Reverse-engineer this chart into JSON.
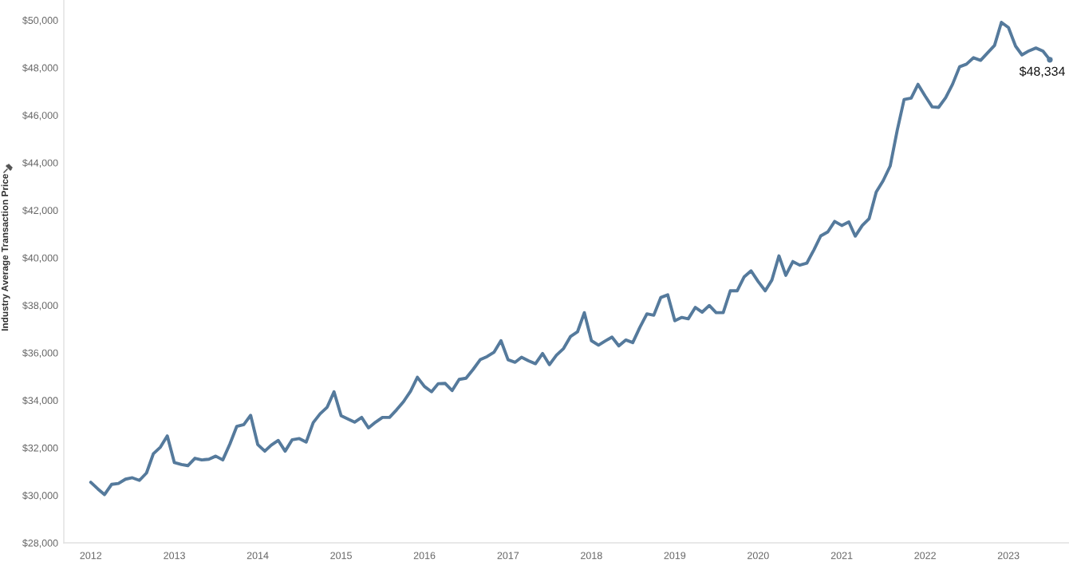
{
  "chart_data": {
    "type": "line",
    "ylabel": "Industry Average Transaction Price",
    "x": [
      "2012-01",
      "2012-02",
      "2012-03",
      "2012-04",
      "2012-05",
      "2012-06",
      "2012-07",
      "2012-08",
      "2012-09",
      "2012-10",
      "2012-11",
      "2012-12",
      "2013-01",
      "2013-02",
      "2013-03",
      "2013-04",
      "2013-05",
      "2013-06",
      "2013-07",
      "2013-08",
      "2013-09",
      "2013-10",
      "2013-11",
      "2013-12",
      "2014-01",
      "2014-02",
      "2014-03",
      "2014-04",
      "2014-05",
      "2014-06",
      "2014-07",
      "2014-08",
      "2014-09",
      "2014-10",
      "2014-11",
      "2014-12",
      "2015-01",
      "2015-02",
      "2015-03",
      "2015-04",
      "2015-05",
      "2015-06",
      "2015-07",
      "2015-08",
      "2015-09",
      "2015-10",
      "2015-11",
      "2015-12",
      "2016-01",
      "2016-02",
      "2016-03",
      "2016-04",
      "2016-05",
      "2016-06",
      "2016-07",
      "2016-08",
      "2016-09",
      "2016-10",
      "2016-11",
      "2016-12",
      "2017-01",
      "2017-02",
      "2017-03",
      "2017-04",
      "2017-05",
      "2017-06",
      "2017-07",
      "2017-08",
      "2017-09",
      "2017-10",
      "2017-11",
      "2017-12",
      "2018-01",
      "2018-02",
      "2018-03",
      "2018-04",
      "2018-05",
      "2018-06",
      "2018-07",
      "2018-08",
      "2018-09",
      "2018-10",
      "2018-11",
      "2018-12",
      "2019-01",
      "2019-02",
      "2019-03",
      "2019-04",
      "2019-05",
      "2019-06",
      "2019-07",
      "2019-08",
      "2019-09",
      "2019-10",
      "2019-11",
      "2019-12",
      "2020-01",
      "2020-02",
      "2020-03",
      "2020-04",
      "2020-05",
      "2020-06",
      "2020-07",
      "2020-08",
      "2020-09",
      "2020-10",
      "2020-11",
      "2020-12",
      "2021-01",
      "2021-02",
      "2021-03",
      "2021-04",
      "2021-05",
      "2021-06",
      "2021-07",
      "2021-08",
      "2021-09",
      "2021-10",
      "2021-11",
      "2021-12",
      "2022-01",
      "2022-02",
      "2022-03",
      "2022-04",
      "2022-05",
      "2022-06",
      "2022-07",
      "2022-08",
      "2022-09",
      "2022-10",
      "2022-11",
      "2022-12",
      "2023-01",
      "2023-02",
      "2023-03",
      "2023-04",
      "2023-05",
      "2023-06",
      "2023-07"
    ],
    "series": [
      {
        "color": "#557a9c",
        "values": [
          30550,
          30270,
          30030,
          30460,
          30500,
          30680,
          30740,
          30630,
          30940,
          31750,
          32030,
          32500,
          31380,
          31300,
          31250,
          31560,
          31490,
          31520,
          31650,
          31490,
          32160,
          32900,
          32980,
          33370,
          32140,
          31860,
          32110,
          32310,
          31860,
          32340,
          32390,
          32240,
          33060,
          33430,
          33710,
          34360,
          33350,
          33210,
          33080,
          33280,
          32840,
          33080,
          33280,
          33280,
          33600,
          33940,
          34380,
          34970,
          34580,
          34360,
          34700,
          34710,
          34410,
          34880,
          34930,
          35300,
          35710,
          35840,
          36030,
          36510,
          35710,
          35600,
          35810,
          35660,
          35540,
          35970,
          35500,
          35900,
          36180,
          36680,
          36880,
          37690,
          36510,
          36320,
          36490,
          36660,
          36290,
          36540,
          36430,
          37070,
          37640,
          37580,
          38330,
          38440,
          37350,
          37490,
          37430,
          37910,
          37710,
          37990,
          37690,
          37690,
          38610,
          38610,
          39200,
          39450,
          39000,
          38610,
          39060,
          40080,
          39260,
          39840,
          39690,
          39770,
          40330,
          40920,
          41090,
          41530,
          41360,
          41510,
          40910,
          41360,
          41650,
          42770,
          43240,
          43860,
          45370,
          46660,
          46720,
          47300,
          46810,
          46350,
          46330,
          46740,
          47300,
          48040,
          48150,
          48420,
          48310,
          48620,
          48940,
          49910,
          49690,
          48910,
          48540,
          48710,
          48830,
          48700,
          48334
        ]
      },
      {
        "type": "scatter",
        "x": [
          "2023-07"
        ],
        "values": [
          48334
        ],
        "color": "#557a9c",
        "marker": "circle",
        "value_labels": [
          "$48,334"
        ]
      }
    ],
    "xlim": [
      "2011-09-05",
      "2023-09-23"
    ],
    "xticks": [
      {
        "value": "2012-01-01",
        "label": "2012"
      },
      {
        "value": "2013-01-01",
        "label": "2013"
      },
      {
        "value": "2014-01-01",
        "label": "2014"
      },
      {
        "value": "2015-01-01",
        "label": "2015"
      },
      {
        "value": "2016-01-01",
        "label": "2016"
      },
      {
        "value": "2017-01-01",
        "label": "2017"
      },
      {
        "value": "2018-01-01",
        "label": "2018"
      },
      {
        "value": "2019-01-01",
        "label": "2019"
      },
      {
        "value": "2020-01-01",
        "label": "2020"
      },
      {
        "value": "2021-01-01",
        "label": "2021"
      },
      {
        "value": "2022-01-01",
        "label": "2022"
      },
      {
        "value": "2023-01-01",
        "label": "2023"
      }
    ],
    "ylim": [
      28000,
      50850
    ],
    "yticks": [
      {
        "value": 28000,
        "label": "$28,000"
      },
      {
        "value": 30000,
        "label": "$30,000"
      },
      {
        "value": 32000,
        "label": "$32,000"
      },
      {
        "value": 34000,
        "label": "$34,000"
      },
      {
        "value": 36000,
        "label": "$36,000"
      },
      {
        "value": 38000,
        "label": "$38,000"
      },
      {
        "value": 40000,
        "label": "$40,000"
      },
      {
        "value": 42000,
        "label": "$42,000"
      },
      {
        "value": 44000,
        "label": "$44,000"
      },
      {
        "value": 46000,
        "label": "$46,000"
      },
      {
        "value": 48000,
        "label": "$48,000"
      },
      {
        "value": 50000,
        "label": "$50,000"
      }
    ]
  }
}
